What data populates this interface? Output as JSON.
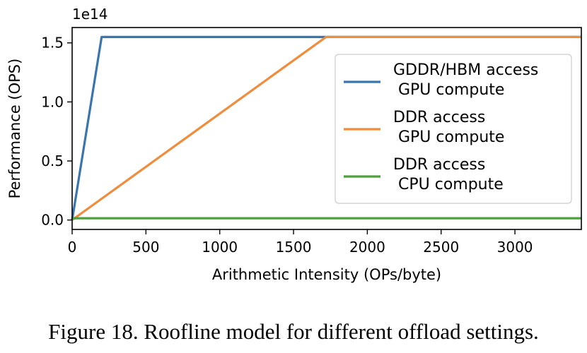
{
  "figure": {
    "caption": "Figure 18. Roofline model for different offload settings."
  },
  "chart_data": {
    "type": "line",
    "xlabel": "Arithmetic Intensity (OPs/byte)",
    "ylabel": "Performance (OPS)",
    "y_scale_label": "1e14",
    "xlim": [
      0,
      3450
    ],
    "ylim": [
      -0.08,
      1.63
    ],
    "x_ticks": [
      0,
      500,
      1000,
      1500,
      2000,
      2500,
      3000
    ],
    "x_tick_labels": [
      "0",
      "500",
      "1000",
      "1500",
      "2000",
      "2500",
      "3000"
    ],
    "y_ticks": [
      0.0,
      0.5,
      1.0,
      1.5
    ],
    "y_tick_labels": [
      "0.0",
      "0.5",
      "1.0",
      "1.5"
    ],
    "legend_position": "right",
    "grid": false,
    "series": [
      {
        "name_lines": [
          "GDDR/HBM access",
          " GPU compute"
        ],
        "color": "#3a75ad",
        "x": [
          0,
          200,
          3450
        ],
        "y": [
          0,
          1.55,
          1.55
        ]
      },
      {
        "name_lines": [
          "DDR access",
          " GPU compute"
        ],
        "color": "#ef8d3c",
        "x": [
          0,
          1720,
          3450
        ],
        "y": [
          0,
          1.55,
          1.55
        ]
      },
      {
        "name_lines": [
          "DDR access",
          " CPU compute"
        ],
        "color": "#4ea03e",
        "x": [
          0,
          3450
        ],
        "y": [
          0.015,
          0.015
        ]
      }
    ]
  }
}
